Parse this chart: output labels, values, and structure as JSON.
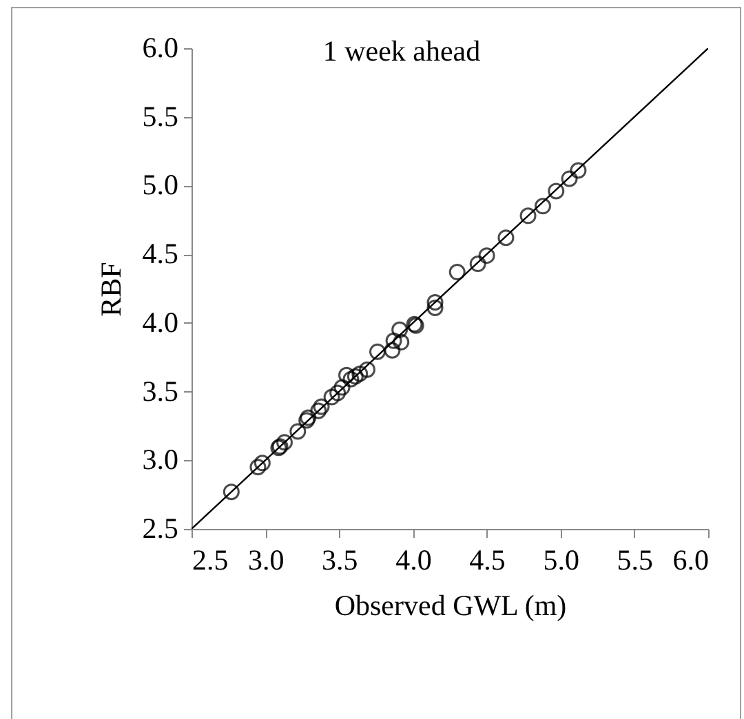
{
  "chart_data": {
    "type": "scatter",
    "title": "1 week ahead",
    "xlabel": "Observed  GWL (m)",
    "ylabel": "RBF",
    "xlim": [
      2.5,
      6.0
    ],
    "ylim": [
      2.5,
      6.0
    ],
    "xticks": [
      {
        "value": 2.5,
        "label": "2.5"
      },
      {
        "value": 3,
        "label": "3.0"
      },
      {
        "value": 3.5,
        "label": "3.5"
      },
      {
        "value": 4,
        "label": "4.0"
      },
      {
        "value": 4.5,
        "label": "4.5"
      },
      {
        "value": 5,
        "label": "5.0"
      },
      {
        "value": 5.5,
        "label": "5.5"
      },
      {
        "value": 6,
        "label": "6.0"
      }
    ],
    "yticks": [
      {
        "value": 2.5,
        "label": "2.5"
      },
      {
        "value": 3,
        "label": "3.0"
      },
      {
        "value": 3.5,
        "label": "3.5"
      },
      {
        "value": 4,
        "label": "4.0"
      },
      {
        "value": 4.5,
        "label": "4.5"
      },
      {
        "value": 5,
        "label": "5.0"
      },
      {
        "value": 5.5,
        "label": "5.5"
      },
      {
        "value": 6,
        "label": "6.0"
      }
    ],
    "grid": false,
    "series": [
      {
        "marker": "circle",
        "color": "#000000",
        "x": [
          2.77,
          2.95,
          2.98,
          3.09,
          3.1,
          3.13,
          3.22,
          3.28,
          3.29,
          3.36,
          3.38,
          3.45,
          3.49,
          3.52,
          3.55,
          3.58,
          3.61,
          3.64,
          3.69,
          3.76,
          3.86,
          3.87,
          3.92,
          3.91,
          4.01,
          4.02,
          4.15,
          4.15,
          4.3,
          4.44,
          4.5,
          4.63,
          4.78,
          4.88,
          4.97,
          5.06,
          5.12
        ],
        "values": [
          2.77,
          2.95,
          2.98,
          3.09,
          3.1,
          3.13,
          3.21,
          3.29,
          3.31,
          3.36,
          3.39,
          3.46,
          3.49,
          3.53,
          3.62,
          3.59,
          3.61,
          3.63,
          3.66,
          3.79,
          3.8,
          3.87,
          3.86,
          3.95,
          3.99,
          3.98,
          4.15,
          4.11,
          4.37,
          4.43,
          4.49,
          4.62,
          4.78,
          4.85,
          4.96,
          5.05,
          5.11
        ]
      },
      {
        "type": "line",
        "marker": "none",
        "color": "#000000",
        "line_style": "solid",
        "x": [
          2.5,
          6.0
        ],
        "values": [
          2.5,
          6.0
        ]
      }
    ]
  }
}
